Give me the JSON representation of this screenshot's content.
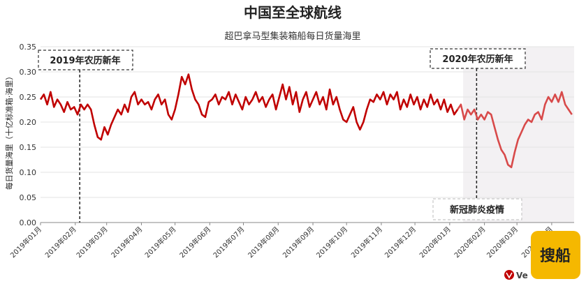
{
  "chart_data": {
    "type": "line",
    "title": "中国至全球航线",
    "subtitle": "超巴拿马型集装箱船每日货量海里",
    "ylabel": "每日货量海里（十亿标准箱·海里）",
    "ylim": [
      0,
      0.35
    ],
    "yticks": [
      "0.00",
      "0.05",
      "0.10",
      "0.15",
      "0.20",
      "0.25",
      "0.30",
      "0.35"
    ],
    "xlim": [
      "2019-01-01",
      "2020-04-21"
    ],
    "xticks": [
      {
        "date": "2019-01-01",
        "label": "2019年01月"
      },
      {
        "date": "2019-02-01",
        "label": "2019年02月"
      },
      {
        "date": "2019-03-01",
        "label": "2019年03月"
      },
      {
        "date": "2019-04-01",
        "label": "2019年04月"
      },
      {
        "date": "2019-05-01",
        "label": "2019年05月"
      },
      {
        "date": "2019-06-01",
        "label": "2019年06月"
      },
      {
        "date": "2019-07-01",
        "label": "2019年07月"
      },
      {
        "date": "2019-08-01",
        "label": "2019年08月"
      },
      {
        "date": "2019-09-01",
        "label": "2019年09月"
      },
      {
        "date": "2019-10-01",
        "label": "2019年10月"
      },
      {
        "date": "2019-11-01",
        "label": "2019年11月"
      },
      {
        "date": "2019-12-01",
        "label": "2019年12月"
      },
      {
        "date": "2020-01-01",
        "label": "2020年01月"
      },
      {
        "date": "2020-02-01",
        "label": "2020年02月"
      },
      {
        "date": "2020-03-01",
        "label": "2020年03月"
      },
      {
        "date": "2020-04-01",
        "label": "2020年04月"
      }
    ],
    "grid": true,
    "series": [
      {
        "color": "#c00000",
        "points": [
          [
            "2019-01-01",
            0.245
          ],
          [
            "2019-01-04",
            0.255
          ],
          [
            "2019-01-07",
            0.235
          ],
          [
            "2019-01-10",
            0.26
          ],
          [
            "2019-01-13",
            0.23
          ],
          [
            "2019-01-16",
            0.245
          ],
          [
            "2019-01-19",
            0.235
          ],
          [
            "2019-01-22",
            0.22
          ],
          [
            "2019-01-25",
            0.24
          ],
          [
            "2019-01-28",
            0.225
          ],
          [
            "2019-01-31",
            0.23
          ],
          [
            "2019-02-03",
            0.215
          ],
          [
            "2019-02-06",
            0.235
          ],
          [
            "2019-02-09",
            0.225
          ],
          [
            "2019-02-12",
            0.235
          ],
          [
            "2019-02-15",
            0.225
          ],
          [
            "2019-02-18",
            0.195
          ],
          [
            "2019-02-21",
            0.17
          ],
          [
            "2019-02-24",
            0.165
          ],
          [
            "2019-02-27",
            0.19
          ],
          [
            "2019-03-02",
            0.175
          ],
          [
            "2019-03-05",
            0.195
          ],
          [
            "2019-03-08",
            0.21
          ],
          [
            "2019-03-11",
            0.225
          ],
          [
            "2019-03-14",
            0.215
          ],
          [
            "2019-03-17",
            0.235
          ],
          [
            "2019-03-20",
            0.22
          ],
          [
            "2019-03-23",
            0.25
          ],
          [
            "2019-03-26",
            0.26
          ],
          [
            "2019-03-29",
            0.235
          ],
          [
            "2019-04-01",
            0.245
          ],
          [
            "2019-04-04",
            0.235
          ],
          [
            "2019-04-07",
            0.24
          ],
          [
            "2019-04-10",
            0.225
          ],
          [
            "2019-04-13",
            0.245
          ],
          [
            "2019-04-16",
            0.255
          ],
          [
            "2019-04-19",
            0.235
          ],
          [
            "2019-04-22",
            0.245
          ],
          [
            "2019-04-25",
            0.215
          ],
          [
            "2019-04-28",
            0.205
          ],
          [
            "2019-05-01",
            0.225
          ],
          [
            "2019-05-04",
            0.255
          ],
          [
            "2019-05-07",
            0.29
          ],
          [
            "2019-05-10",
            0.275
          ],
          [
            "2019-05-13",
            0.295
          ],
          [
            "2019-05-16",
            0.265
          ],
          [
            "2019-05-19",
            0.245
          ],
          [
            "2019-05-22",
            0.235
          ],
          [
            "2019-05-25",
            0.215
          ],
          [
            "2019-05-28",
            0.21
          ],
          [
            "2019-05-31",
            0.24
          ],
          [
            "2019-06-03",
            0.245
          ],
          [
            "2019-06-06",
            0.255
          ],
          [
            "2019-06-09",
            0.235
          ],
          [
            "2019-06-12",
            0.25
          ],
          [
            "2019-06-15",
            0.245
          ],
          [
            "2019-06-18",
            0.26
          ],
          [
            "2019-06-21",
            0.235
          ],
          [
            "2019-06-24",
            0.255
          ],
          [
            "2019-06-27",
            0.24
          ],
          [
            "2019-06-30",
            0.225
          ],
          [
            "2019-07-03",
            0.25
          ],
          [
            "2019-07-06",
            0.235
          ],
          [
            "2019-07-09",
            0.245
          ],
          [
            "2019-07-12",
            0.26
          ],
          [
            "2019-07-15",
            0.24
          ],
          [
            "2019-07-18",
            0.25
          ],
          [
            "2019-07-21",
            0.23
          ],
          [
            "2019-07-24",
            0.245
          ],
          [
            "2019-07-27",
            0.255
          ],
          [
            "2019-07-30",
            0.225
          ],
          [
            "2019-08-02",
            0.25
          ],
          [
            "2019-08-05",
            0.275
          ],
          [
            "2019-08-08",
            0.245
          ],
          [
            "2019-08-11",
            0.27
          ],
          [
            "2019-08-14",
            0.235
          ],
          [
            "2019-08-17",
            0.26
          ],
          [
            "2019-08-20",
            0.22
          ],
          [
            "2019-08-23",
            0.245
          ],
          [
            "2019-08-26",
            0.26
          ],
          [
            "2019-08-29",
            0.23
          ],
          [
            "2019-09-01",
            0.245
          ],
          [
            "2019-09-04",
            0.26
          ],
          [
            "2019-09-07",
            0.235
          ],
          [
            "2019-09-10",
            0.25
          ],
          [
            "2019-09-13",
            0.225
          ],
          [
            "2019-09-16",
            0.265
          ],
          [
            "2019-09-19",
            0.235
          ],
          [
            "2019-09-22",
            0.25
          ],
          [
            "2019-09-25",
            0.225
          ],
          [
            "2019-09-28",
            0.205
          ],
          [
            "2019-10-01",
            0.2
          ],
          [
            "2019-10-04",
            0.215
          ],
          [
            "2019-10-07",
            0.23
          ],
          [
            "2019-10-10",
            0.2
          ],
          [
            "2019-10-13",
            0.185
          ],
          [
            "2019-10-16",
            0.2
          ],
          [
            "2019-10-19",
            0.225
          ],
          [
            "2019-10-22",
            0.245
          ],
          [
            "2019-10-25",
            0.24
          ],
          [
            "2019-10-28",
            0.255
          ],
          [
            "2019-10-31",
            0.245
          ],
          [
            "2019-11-03",
            0.26
          ],
          [
            "2019-11-06",
            0.235
          ],
          [
            "2019-11-09",
            0.255
          ],
          [
            "2019-11-12",
            0.245
          ],
          [
            "2019-11-15",
            0.26
          ],
          [
            "2019-11-18",
            0.225
          ],
          [
            "2019-11-21",
            0.245
          ],
          [
            "2019-11-24",
            0.23
          ],
          [
            "2019-11-27",
            0.255
          ],
          [
            "2019-11-30",
            0.235
          ],
          [
            "2019-12-03",
            0.25
          ],
          [
            "2019-12-06",
            0.225
          ],
          [
            "2019-12-09",
            0.245
          ],
          [
            "2019-12-12",
            0.23
          ],
          [
            "2019-12-15",
            0.255
          ],
          [
            "2019-12-18",
            0.235
          ],
          [
            "2019-12-21",
            0.245
          ],
          [
            "2019-12-24",
            0.225
          ],
          [
            "2019-12-27",
            0.245
          ],
          [
            "2019-12-30",
            0.22
          ],
          [
            "2020-01-02",
            0.235
          ],
          [
            "2020-01-05",
            0.215
          ],
          [
            "2020-01-08",
            0.225
          ]
        ]
      },
      {
        "color": "#d84a4a",
        "points": [
          [
            "2020-01-08",
            0.225
          ],
          [
            "2020-01-11",
            0.235
          ],
          [
            "2020-01-14",
            0.205
          ],
          [
            "2020-01-17",
            0.225
          ],
          [
            "2020-01-20",
            0.215
          ],
          [
            "2020-01-23",
            0.225
          ],
          [
            "2020-01-26",
            0.205
          ],
          [
            "2020-01-29",
            0.215
          ],
          [
            "2020-02-01",
            0.205
          ],
          [
            "2020-02-04",
            0.22
          ],
          [
            "2020-02-07",
            0.215
          ],
          [
            "2020-02-10",
            0.19
          ],
          [
            "2020-02-13",
            0.165
          ],
          [
            "2020-02-16",
            0.145
          ],
          [
            "2020-02-19",
            0.135
          ],
          [
            "2020-02-22",
            0.115
          ],
          [
            "2020-02-25",
            0.11
          ],
          [
            "2020-02-28",
            0.14
          ],
          [
            "2020-03-02",
            0.165
          ],
          [
            "2020-03-05",
            0.18
          ],
          [
            "2020-03-08",
            0.195
          ],
          [
            "2020-03-11",
            0.205
          ],
          [
            "2020-03-14",
            0.2
          ],
          [
            "2020-03-17",
            0.215
          ],
          [
            "2020-03-20",
            0.22
          ],
          [
            "2020-03-23",
            0.205
          ],
          [
            "2020-03-26",
            0.235
          ],
          [
            "2020-03-29",
            0.25
          ],
          [
            "2020-04-01",
            0.24
          ],
          [
            "2020-04-04",
            0.255
          ],
          [
            "2020-04-07",
            0.24
          ],
          [
            "2020-04-10",
            0.26
          ],
          [
            "2020-04-13",
            0.235
          ],
          [
            "2020-04-16",
            0.225
          ],
          [
            "2020-04-19",
            0.215
          ]
        ]
      }
    ],
    "annotations": [
      {
        "label": "2019年农历新年",
        "date": "2019-02-05"
      },
      {
        "label": "2020年农历新年",
        "date": "2020-01-25"
      }
    ],
    "shaded_region": {
      "label": "新冠肺炎疫情",
      "start": "2020-01-13",
      "end": "2020-04-21",
      "color": "#f3f1f3"
    },
    "logo_text": "搜船",
    "logo_color": "#f5b800",
    "brand_mark_text": "Ve"
  }
}
